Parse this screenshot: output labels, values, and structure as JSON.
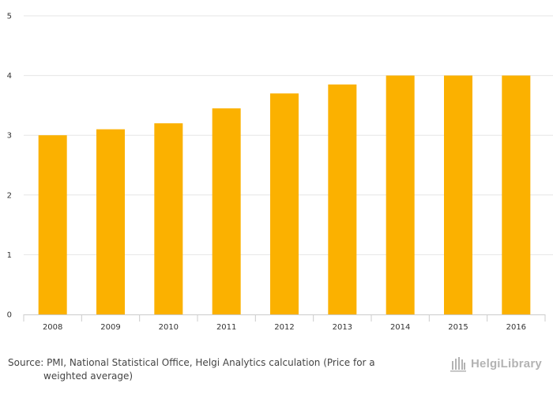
{
  "chart_data": {
    "type": "bar",
    "categories": [
      "2008",
      "2009",
      "2010",
      "2011",
      "2012",
      "2013",
      "2014",
      "2015",
      "2016"
    ],
    "values": [
      3.0,
      3.1,
      3.2,
      3.45,
      3.7,
      3.85,
      4.0,
      4.0,
      4.0
    ],
    "title": "",
    "xlabel": "",
    "ylabel": "",
    "ylim": [
      0,
      5
    ],
    "yticks": [
      "0",
      "1",
      "2",
      "3",
      "4",
      "5"
    ],
    "grid": true,
    "bar_color": "#fbb100",
    "grid_color": "#e6e6e6",
    "axis_color": "#cccccc"
  },
  "footer": {
    "source_line1": "Source: PMI, National Statistical Office, Helgi Analytics calculation (Price for a",
    "source_line2": "weighted average)",
    "brand_text": "HelgiLibrary",
    "brand_icon": "library-building-icon",
    "brand_color": "#b3b3b3"
  }
}
